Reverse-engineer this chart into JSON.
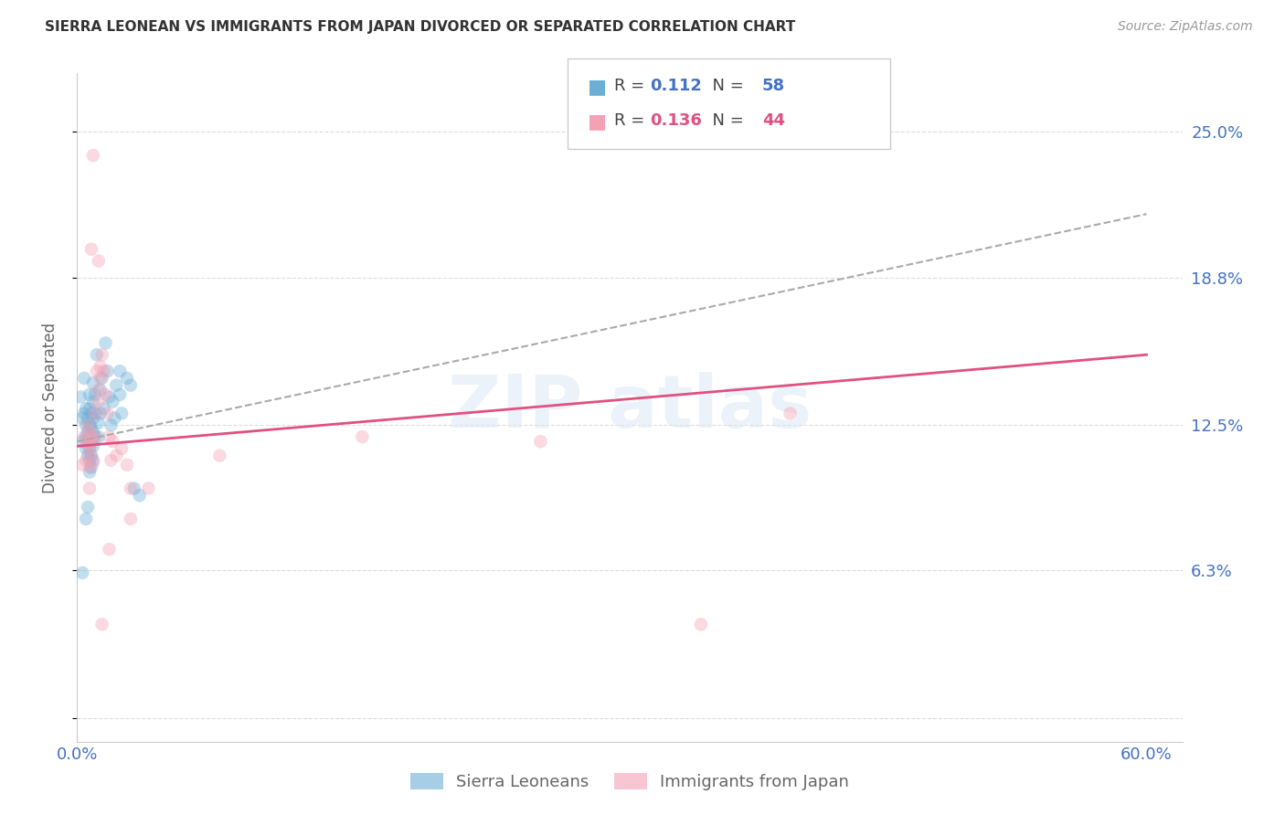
{
  "title": "SIERRA LEONEAN VS IMMIGRANTS FROM JAPAN DIVORCED OR SEPARATED CORRELATION CHART",
  "source": "Source: ZipAtlas.com",
  "ylabel": "Divorced or Separated",
  "y_tick_values": [
    0.0,
    0.063,
    0.125,
    0.188,
    0.25
  ],
  "y_tick_labels": [
    "",
    "6.3%",
    "12.5%",
    "18.8%",
    "25.0%"
  ],
  "xlim": [
    0.0,
    0.62
  ],
  "ylim": [
    -0.01,
    0.275
  ],
  "blue_scatter": [
    [
      0.002,
      0.137
    ],
    [
      0.003,
      0.128
    ],
    [
      0.003,
      0.118
    ],
    [
      0.004,
      0.145
    ],
    [
      0.004,
      0.13
    ],
    [
      0.005,
      0.132
    ],
    [
      0.005,
      0.125
    ],
    [
      0.005,
      0.12
    ],
    [
      0.005,
      0.115
    ],
    [
      0.006,
      0.128
    ],
    [
      0.006,
      0.122
    ],
    [
      0.006,
      0.118
    ],
    [
      0.006,
      0.112
    ],
    [
      0.007,
      0.138
    ],
    [
      0.007,
      0.132
    ],
    [
      0.007,
      0.125
    ],
    [
      0.007,
      0.12
    ],
    [
      0.007,
      0.115
    ],
    [
      0.007,
      0.11
    ],
    [
      0.007,
      0.105
    ],
    [
      0.008,
      0.13
    ],
    [
      0.008,
      0.124
    ],
    [
      0.008,
      0.118
    ],
    [
      0.008,
      0.112
    ],
    [
      0.008,
      0.107
    ],
    [
      0.009,
      0.143
    ],
    [
      0.009,
      0.135
    ],
    [
      0.009,
      0.128
    ],
    [
      0.009,
      0.122
    ],
    [
      0.009,
      0.116
    ],
    [
      0.009,
      0.11
    ],
    [
      0.01,
      0.138
    ],
    [
      0.01,
      0.13
    ],
    [
      0.01,
      0.12
    ],
    [
      0.011,
      0.155
    ],
    [
      0.012,
      0.126
    ],
    [
      0.012,
      0.12
    ],
    [
      0.013,
      0.14
    ],
    [
      0.013,
      0.13
    ],
    [
      0.014,
      0.145
    ],
    [
      0.015,
      0.132
    ],
    [
      0.016,
      0.16
    ],
    [
      0.017,
      0.148
    ],
    [
      0.018,
      0.137
    ],
    [
      0.019,
      0.125
    ],
    [
      0.02,
      0.135
    ],
    [
      0.021,
      0.128
    ],
    [
      0.022,
      0.142
    ],
    [
      0.024,
      0.148
    ],
    [
      0.024,
      0.138
    ],
    [
      0.025,
      0.13
    ],
    [
      0.028,
      0.145
    ],
    [
      0.03,
      0.142
    ],
    [
      0.032,
      0.098
    ],
    [
      0.035,
      0.095
    ],
    [
      0.003,
      0.062
    ],
    [
      0.005,
      0.085
    ],
    [
      0.006,
      0.09
    ]
  ],
  "pink_scatter": [
    [
      0.003,
      0.108
    ],
    [
      0.004,
      0.12
    ],
    [
      0.005,
      0.118
    ],
    [
      0.005,
      0.11
    ],
    [
      0.006,
      0.125
    ],
    [
      0.006,
      0.117
    ],
    [
      0.007,
      0.122
    ],
    [
      0.007,
      0.115
    ],
    [
      0.007,
      0.107
    ],
    [
      0.007,
      0.098
    ],
    [
      0.008,
      0.12
    ],
    [
      0.008,
      0.112
    ],
    [
      0.009,
      0.118
    ],
    [
      0.009,
      0.109
    ],
    [
      0.01,
      0.13
    ],
    [
      0.01,
      0.12
    ],
    [
      0.011,
      0.148
    ],
    [
      0.012,
      0.14
    ],
    [
      0.012,
      0.135
    ],
    [
      0.013,
      0.15
    ],
    [
      0.013,
      0.145
    ],
    [
      0.014,
      0.155
    ],
    [
      0.015,
      0.148
    ],
    [
      0.016,
      0.138
    ],
    [
      0.017,
      0.13
    ],
    [
      0.018,
      0.12
    ],
    [
      0.019,
      0.11
    ],
    [
      0.02,
      0.118
    ],
    [
      0.022,
      0.112
    ],
    [
      0.025,
      0.115
    ],
    [
      0.028,
      0.108
    ],
    [
      0.03,
      0.098
    ],
    [
      0.009,
      0.24
    ],
    [
      0.008,
      0.2
    ],
    [
      0.012,
      0.195
    ],
    [
      0.014,
      0.04
    ],
    [
      0.018,
      0.072
    ],
    [
      0.4,
      0.13
    ],
    [
      0.26,
      0.118
    ],
    [
      0.35,
      0.04
    ],
    [
      0.16,
      0.12
    ],
    [
      0.08,
      0.112
    ],
    [
      0.04,
      0.098
    ],
    [
      0.03,
      0.085
    ]
  ],
  "blue_line": {
    "x0": 0.0,
    "y0": 0.118,
    "x1": 0.6,
    "y1": 0.215
  },
  "pink_line": {
    "x0": 0.0,
    "y0": 0.116,
    "x1": 0.6,
    "y1": 0.155
  },
  "scatter_size": 110,
  "scatter_alpha": 0.4,
  "blue_color": "#6baed6",
  "pink_color": "#f4a0b5",
  "blue_line_color": "#aaaaaa",
  "pink_line_color": "#e05080",
  "grid_color": "#dddddd",
  "background_color": "#ffffff",
  "legend_R1": "0.112",
  "legend_N1": "58",
  "legend_R2": "0.136",
  "legend_N2": "44",
  "legend_label1": "Sierra Leoneans",
  "legend_label2": "Immigrants from Japan",
  "tick_color": "#4472c4"
}
